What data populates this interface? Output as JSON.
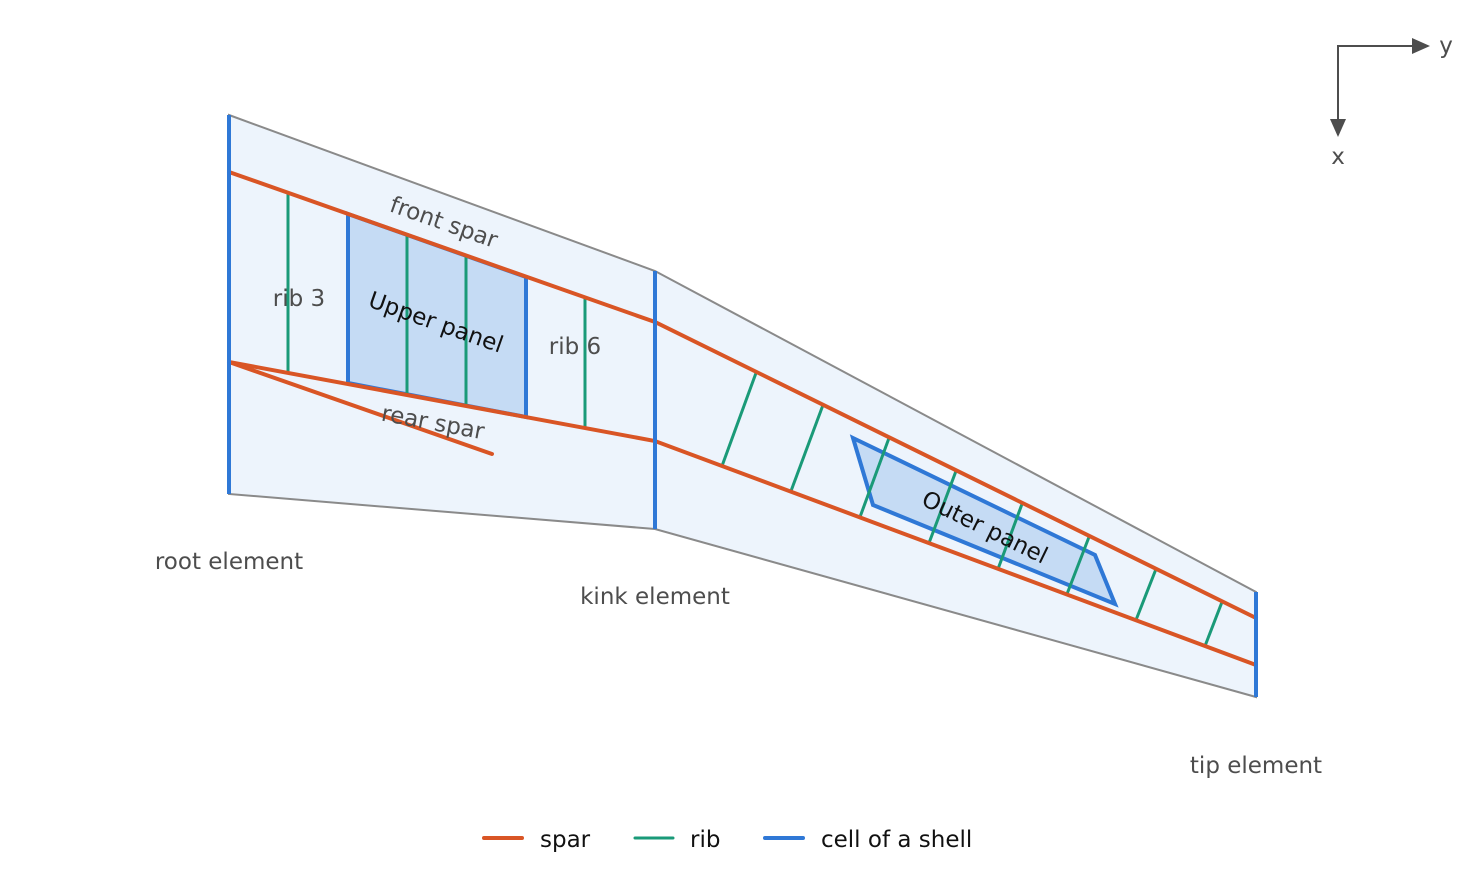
{
  "colors": {
    "spar": "#d95525",
    "rib": "#1a9a78",
    "cell": "#2f78d6",
    "wing_fill": "#edf4fc",
    "wing_outline": "#8a8a8a",
    "cell_fill": "#c5dbf4",
    "axis": "#4d4d4d"
  },
  "labels": {
    "front_spar": "front spar",
    "rear_spar": "rear spar",
    "rib_3": "rib 3",
    "rib_6": "rib 6",
    "upper_panel": "Upper panel",
    "outer_panel": "Outer panel",
    "root_element": "root element",
    "kink_element": "kink element",
    "tip_element": "tip element"
  },
  "axes": {
    "y_label": "y",
    "x_label": "x"
  },
  "legend": [
    {
      "label": "spar",
      "color": "#d95525"
    },
    {
      "label": "rib",
      "color": "#1a9a78"
    },
    {
      "label": "cell of a shell",
      "color": "#2f78d6"
    }
  ]
}
